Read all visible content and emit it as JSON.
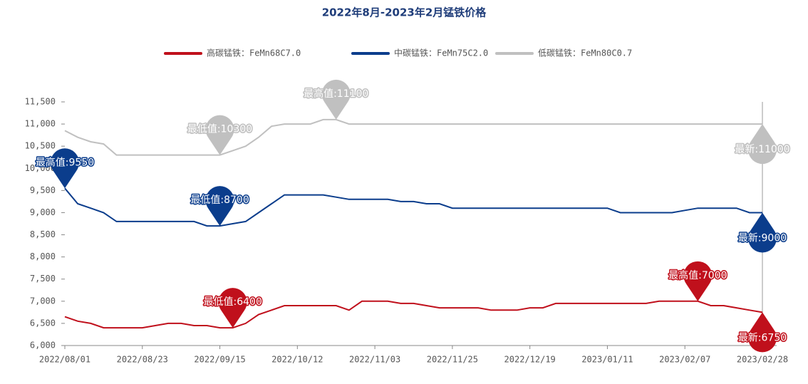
{
  "chart_data": {
    "type": "line",
    "title": "2022年8月-2023年2月锰铁价格",
    "categories": [
      "2022/08/01",
      null,
      null,
      null,
      null,
      null,
      "2022/08/23",
      null,
      null,
      null,
      null,
      null,
      "2022/09/15",
      null,
      null,
      null,
      null,
      null,
      "2022/10/12",
      null,
      null,
      null,
      null,
      null,
      "2022/11/03",
      null,
      null,
      null,
      null,
      null,
      "2022/11/25",
      null,
      null,
      null,
      null,
      null,
      "2022/12/19",
      null,
      null,
      null,
      null,
      null,
      "2023/01/11",
      null,
      null,
      null,
      null,
      null,
      "2023/02/07",
      null,
      null,
      null,
      null,
      null,
      "2023/02/28"
    ],
    "series": [
      {
        "name": "高碳锰铁：FeMn68C7.0",
        "color": "#c0101c",
        "values": [
          6650,
          6550,
          6500,
          6400,
          6400,
          6400,
          6400,
          6450,
          6500,
          6500,
          6450,
          6450,
          6400,
          6400,
          6500,
          6700,
          6800,
          6900,
          6900,
          6900,
          6900,
          6900,
          6800,
          7000,
          7000,
          7000,
          6950,
          6950,
          6900,
          6850,
          6850,
          6850,
          6850,
          6800,
          6800,
          6800,
          6850,
          6850,
          6950,
          6950,
          6950,
          6950,
          6950,
          6950,
          6950,
          6950,
          7000,
          7000,
          7000,
          7000,
          6900,
          6900,
          6850,
          6800,
          6750
        ],
        "markers": [
          {
            "label": "最高值:7000",
            "value": 7000
          },
          {
            "label": "最低值:6400",
            "value": 6400
          },
          {
            "label": "最新:6750",
            "value": 6750,
            "latest": true
          }
        ]
      },
      {
        "name": "中碳锰铁：FeMn75C2.0",
        "color": "#0b3d8c",
        "values": [
          9550,
          9200,
          9100,
          9000,
          8800,
          8800,
          8800,
          8800,
          8800,
          8800,
          8800,
          8700,
          8700,
          8750,
          8800,
          9000,
          9200,
          9400,
          9400,
          9400,
          9400,
          9350,
          9300,
          9300,
          9300,
          9300,
          9250,
          9250,
          9200,
          9200,
          9100,
          9100,
          9100,
          9100,
          9100,
          9100,
          9100,
          9100,
          9100,
          9100,
          9100,
          9100,
          9100,
          9000,
          9000,
          9000,
          9000,
          9000,
          9050,
          9100,
          9100,
          9100,
          9100,
          9000,
          9000
        ],
        "markers": [
          {
            "label": "最高值:9550",
            "value": 9550
          },
          {
            "label": "最低值:8700",
            "value": 8700
          },
          {
            "label": "最新:9000",
            "value": 9000,
            "latest": true
          }
        ]
      },
      {
        "name": "低碳锰铁：FeMn80C0.7",
        "color": "#c0c0c0",
        "values": [
          10850,
          10700,
          10600,
          10550,
          10300,
          10300,
          10300,
          10300,
          10300,
          10300,
          10300,
          10300,
          10300,
          10400,
          10500,
          10700,
          10950,
          11000,
          11000,
          11000,
          11100,
          11100,
          11000,
          11000,
          11000,
          11000,
          11000,
          11000,
          11000,
          11000,
          11000,
          11000,
          11000,
          11000,
          11000,
          11000,
          11000,
          11000,
          11000,
          11000,
          11000,
          11000,
          11000,
          11000,
          11000,
          11000,
          11000,
          11000,
          11000,
          11000,
          11000,
          11000,
          11000,
          11000,
          11000
        ],
        "markers": [
          {
            "label": "最高值:11100",
            "value": 11100
          },
          {
            "label": "最低值:10300",
            "value": 10300
          },
          {
            "label": "最新:11000",
            "value": 11000,
            "latest": true
          }
        ]
      }
    ],
    "ylim": [
      6000,
      11500
    ],
    "yticks": [
      {
        "value": 6000,
        "label": "6,000"
      },
      {
        "value": 6500,
        "label": "6,500"
      },
      {
        "value": 7000,
        "label": "7,000"
      },
      {
        "value": 7500,
        "label": "7,500"
      },
      {
        "value": 8000,
        "label": "8,000"
      },
      {
        "value": 8500,
        "label": "8,500"
      },
      {
        "value": 9000,
        "label": "9,000"
      },
      {
        "value": 9500,
        "label": "9,500"
      },
      {
        "value": 10000,
        "label": "10,000"
      },
      {
        "value": 10500,
        "label": "10,500"
      },
      {
        "value": 11000,
        "label": "11,000"
      },
      {
        "value": 11500,
        "label": "11,500"
      }
    ],
    "legend": "top"
  }
}
